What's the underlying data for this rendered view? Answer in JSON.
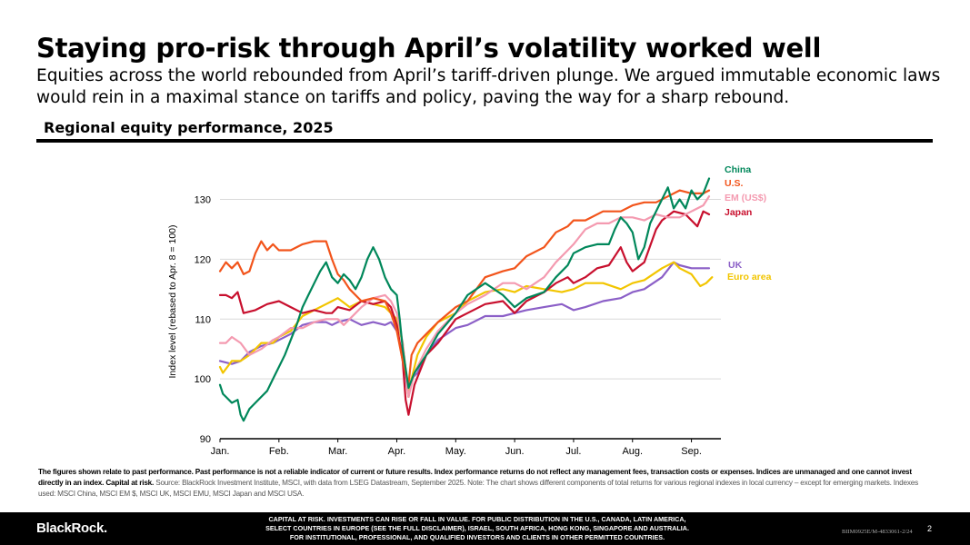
{
  "title": "Staying pro-risk through April’s volatility worked well",
  "subtitle": "Equities across the world rebounded from April’s tariff-driven plunge. We argued immutable economic laws would rein in a maximal stance on tariffs and policy, paving the way for a sharp rebound.",
  "chart_heading": "Regional equity performance, 2025",
  "notes": {
    "past_performance": "The figures shown relate to past performance. Past performance is not a reliable indicator of current or future results. Index performance returns do not reflect any management fees, transaction costs or expenses. Indices are unmanaged and one cannot invest directly in an index.",
    "capital_at_risk": "Capital at risk.",
    "source": "Source: BlackRock Investment Institute, MSCI, with data from LSEG Datastream, September 2025. Note: The chart shows different components of total returns for various regional indexes in local currency – except for emerging markets. Indexes used: MSCI China, MSCI EM $, MSCI UK, MSCI EMU, MSCI Japan and MSCI USA."
  },
  "footer": {
    "logo": "BlackRock.",
    "disclaimer_1": "CAPITAL AT RISK. INVESTMENTS CAN RISE OR FALL IN VALUE. FOR PUBLIC DISTRIBUTION IN THE U.S., CANADA, LATIN AMERICA,",
    "disclaimer_2": "SELECT COUNTRIES IN EUROPE (SEE THE FULL DISCLAIMER), ISRAEL, SOUTH AFRICA, HONG KONG, SINGAPORE AND AUSTRALIA.",
    "disclaimer_3": "FOR INSTITUTIONAL, PROFESSIONAL, AND QUALIFIED INVESTORS AND CLIENTS IN OTHER PERMITTED COUNTRIES.",
    "code": "BIIM0925E/M-4833061-2/24",
    "page_number": "2"
  },
  "chart_data": {
    "type": "line",
    "title": "Regional equity performance, 2025",
    "xlabel": "",
    "ylabel": "Index level (rebased to Apr. 8 = 100)",
    "ylim": [
      90,
      136
    ],
    "yticks": [
      90,
      100,
      110,
      120,
      130
    ],
    "xlim": [
      0,
      8.5
    ],
    "xticks": [
      {
        "pos": 0,
        "label": "Jan."
      },
      {
        "pos": 1,
        "label": "Feb."
      },
      {
        "pos": 2,
        "label": "Mar."
      },
      {
        "pos": 3,
        "label": "Apr."
      },
      {
        "pos": 4,
        "label": "May."
      },
      {
        "pos": 5,
        "label": "Jun."
      },
      {
        "pos": 6,
        "label": "Jul."
      },
      {
        "pos": 7,
        "label": "Aug."
      },
      {
        "pos": 8,
        "label": "Sep."
      }
    ],
    "legend_position": "right",
    "series": [
      {
        "name": "UK",
        "color": "#8B5FC7",
        "x": [
          0,
          0.2,
          0.35,
          0.5,
          0.7,
          0.9,
          1.0,
          1.2,
          1.4,
          1.6,
          1.8,
          1.9,
          2.0,
          2.2,
          2.4,
          2.6,
          2.8,
          2.9,
          3.0,
          3.1,
          3.2,
          3.25,
          3.35,
          3.5,
          3.7,
          4.0,
          4.2,
          4.5,
          4.8,
          5.0,
          5.2,
          5.5,
          5.8,
          6.0,
          6.2,
          6.5,
          6.8,
          7.0,
          7.2,
          7.5,
          7.7,
          7.8,
          8.0,
          8.2,
          8.3
        ],
        "values": [
          103,
          102.5,
          103,
          104.5,
          105.5,
          106,
          106.5,
          107.5,
          109,
          109.5,
          109.5,
          109,
          109.5,
          110,
          109,
          109.5,
          109,
          109.5,
          108,
          104,
          97,
          100,
          101,
          104,
          106.5,
          108.5,
          109,
          110.5,
          110.5,
          111,
          111.5,
          112,
          112.5,
          111.5,
          112,
          113,
          113.5,
          114.5,
          115,
          117,
          119.5,
          119,
          118.5,
          118.5,
          118.5
        ]
      },
      {
        "name": "Euro area",
        "color": "#F2C500",
        "x": [
          0,
          0.05,
          0.2,
          0.35,
          0.5,
          0.7,
          0.9,
          1.0,
          1.2,
          1.4,
          1.6,
          1.8,
          1.9,
          2.0,
          2.2,
          2.4,
          2.6,
          2.8,
          2.9,
          3.0,
          3.1,
          3.2,
          3.25,
          3.35,
          3.5,
          3.7,
          4.0,
          4.2,
          4.5,
          4.8,
          5.0,
          5.2,
          5.5,
          5.8,
          6.0,
          6.2,
          6.5,
          6.8,
          7.0,
          7.2,
          7.5,
          7.7,
          7.8,
          8.0,
          8.15,
          8.25,
          8.35
        ],
        "values": [
          102,
          101,
          103,
          103,
          104,
          106,
          106,
          107,
          108,
          110.5,
          111.5,
          112.5,
          113,
          113.5,
          112,
          113,
          112.5,
          112,
          111,
          110,
          106,
          97,
          100,
          104,
          107,
          109.5,
          111,
          113,
          114.5,
          115,
          114.5,
          115.5,
          115,
          114.5,
          115,
          116,
          116,
          115,
          116,
          116.5,
          118.5,
          119.5,
          118.5,
          117.5,
          115.5,
          116,
          117
        ]
      },
      {
        "name": "Japan",
        "color": "#C8102E",
        "x": [
          0,
          0.1,
          0.2,
          0.3,
          0.4,
          0.6,
          0.8,
          1.0,
          1.2,
          1.4,
          1.6,
          1.8,
          1.9,
          2.0,
          2.2,
          2.4,
          2.6,
          2.8,
          2.9,
          3.0,
          3.1,
          3.15,
          3.2,
          3.3,
          3.5,
          3.7,
          4.0,
          4.2,
          4.5,
          4.8,
          5.0,
          5.2,
          5.4,
          5.5,
          5.7,
          5.9,
          6.0,
          6.2,
          6.4,
          6.6,
          6.8,
          6.9,
          7.0,
          7.2,
          7.4,
          7.5,
          7.7,
          7.9,
          8.0,
          8.1,
          8.2,
          8.3
        ],
        "values": [
          114,
          114,
          113.5,
          114.5,
          111,
          111.5,
          112.5,
          113,
          112,
          111,
          111.5,
          111,
          111,
          112,
          111.5,
          113,
          112.5,
          113,
          112,
          109,
          103,
          96.5,
          94,
          99,
          104,
          106,
          110,
          111,
          112.5,
          113,
          111,
          113,
          114,
          114.5,
          116,
          117,
          116,
          117,
          118.5,
          119,
          122,
          119.5,
          118,
          119.5,
          125,
          126.5,
          128,
          127.5,
          126.5,
          125.5,
          128,
          127.5
        ]
      },
      {
        "name": "EM (US$)",
        "color": "#F49AB0",
        "x": [
          0,
          0.1,
          0.2,
          0.35,
          0.5,
          0.7,
          0.9,
          1.0,
          1.2,
          1.4,
          1.6,
          1.8,
          2.0,
          2.1,
          2.2,
          2.4,
          2.6,
          2.8,
          2.9,
          3.0,
          3.1,
          3.2,
          3.3,
          3.5,
          3.7,
          4.0,
          4.2,
          4.5,
          4.8,
          5.0,
          5.2,
          5.5,
          5.7,
          5.9,
          6.0,
          6.2,
          6.4,
          6.6,
          6.8,
          7.0,
          7.2,
          7.4,
          7.6,
          7.8,
          8.0,
          8.2,
          8.3
        ],
        "values": [
          106,
          106,
          107,
          106,
          104,
          105,
          106.5,
          107,
          108.5,
          108.5,
          109.5,
          110,
          110,
          109,
          110,
          112,
          113.5,
          114,
          113,
          111,
          106,
          97,
          101,
          105,
          108,
          111,
          112.5,
          114,
          116,
          116,
          115,
          117,
          119.5,
          121.5,
          122.5,
          125,
          126,
          126,
          127,
          127,
          126.5,
          127.5,
          127,
          127,
          128,
          129,
          130.5
        ]
      },
      {
        "name": "U.S.",
        "color": "#F2541B",
        "x": [
          0,
          0.1,
          0.2,
          0.3,
          0.4,
          0.5,
          0.6,
          0.7,
          0.8,
          0.9,
          1.0,
          1.2,
          1.4,
          1.6,
          1.8,
          1.9,
          2.0,
          2.1,
          2.2,
          2.4,
          2.6,
          2.8,
          2.9,
          3.0,
          3.1,
          3.2,
          3.25,
          3.35,
          3.5,
          3.7,
          4.0,
          4.2,
          4.5,
          4.8,
          5.0,
          5.2,
          5.5,
          5.7,
          5.9,
          6.0,
          6.2,
          6.5,
          6.8,
          7.0,
          7.2,
          7.4,
          7.6,
          7.8,
          8.0,
          8.2,
          8.3
        ],
        "values": [
          118,
          119.5,
          118.5,
          119.5,
          117.5,
          118,
          121,
          123,
          121.5,
          122.5,
          121.5,
          121.5,
          122.5,
          123,
          123,
          120,
          117.5,
          116.5,
          115,
          113,
          113.5,
          113,
          111,
          108,
          103,
          99,
          104,
          106,
          107.5,
          109.5,
          112,
          113,
          117,
          118,
          118.5,
          120.5,
          122,
          124.5,
          125.5,
          126.5,
          126.5,
          128,
          128,
          129,
          129.5,
          129.5,
          130.5,
          131.5,
          131,
          131,
          131.5
        ]
      },
      {
        "name": "China",
        "color": "#00875A",
        "x": [
          0,
          0.05,
          0.1,
          0.2,
          0.3,
          0.35,
          0.4,
          0.5,
          0.6,
          0.7,
          0.8,
          0.9,
          1.0,
          1.1,
          1.2,
          1.3,
          1.4,
          1.5,
          1.6,
          1.7,
          1.8,
          1.9,
          2.0,
          2.1,
          2.2,
          2.3,
          2.4,
          2.5,
          2.6,
          2.7,
          2.8,
          2.9,
          3.0,
          3.05,
          3.1,
          3.2,
          3.3,
          3.5,
          3.7,
          4.0,
          4.2,
          4.5,
          4.8,
          5.0,
          5.2,
          5.5,
          5.7,
          5.9,
          6.0,
          6.2,
          6.4,
          6.6,
          6.7,
          6.8,
          6.9,
          7.0,
          7.1,
          7.2,
          7.3,
          7.4,
          7.5,
          7.6,
          7.7,
          7.8,
          7.9,
          8.0,
          8.1,
          8.2,
          8.3
        ],
        "values": [
          99,
          97.5,
          97,
          96,
          96.5,
          94,
          93,
          95,
          96,
          97,
          98,
          100,
          102,
          104,
          106.5,
          109,
          112,
          114,
          116,
          118,
          119.5,
          117,
          116,
          117.5,
          116.5,
          115,
          117,
          120,
          122,
          120,
          117,
          115,
          114,
          110,
          105,
          98.5,
          101,
          104,
          107.5,
          111,
          114,
          116,
          114,
          112,
          113.5,
          114.5,
          117,
          119,
          121,
          122,
          122.5,
          122.5,
          125,
          127,
          126,
          124.5,
          120,
          122,
          126,
          128,
          130,
          132,
          128.5,
          130,
          128.5,
          131.5,
          130,
          131,
          133.5
        ]
      }
    ]
  }
}
